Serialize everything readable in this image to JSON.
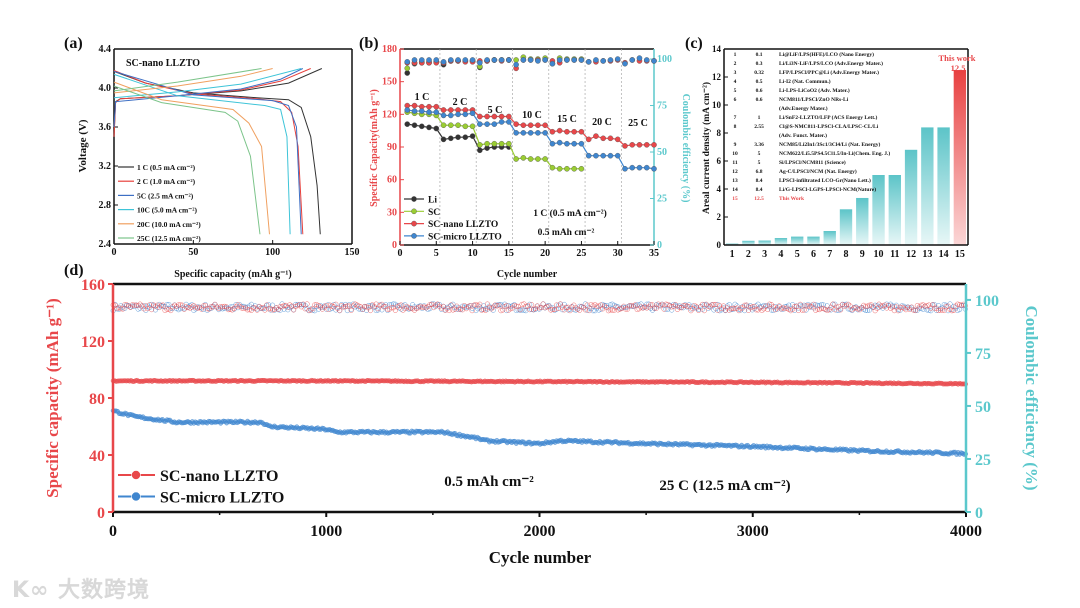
{
  "colors": {
    "red": "#e8474a",
    "blue": "#3f86cf",
    "cyan": "#5bc8cc",
    "black": "#333333",
    "green": "#9acd32"
  },
  "watermark": "大数跨境",
  "chart_data": [
    {
      "panel": "(a)",
      "type": "line",
      "title": "SC-nano LLZTO",
      "xlabel": "Specific capacity (mAh g⁻¹)",
      "ylabel": "Voltage (V)",
      "xlim": [
        0,
        150
      ],
      "ylim": [
        2.4,
        4.4
      ],
      "xticks": [
        "0",
        "50",
        "100",
        "150"
      ],
      "yticks": [
        "2.4",
        "2.8",
        "3.2",
        "3.6",
        "4.0",
        "4.4"
      ],
      "legend_position": "bottom-left",
      "series": [
        {
          "name": "1 C  (0.5  mA cm⁻²)",
          "color": "#333333",
          "discharge": [
            [
              0,
              4.17
            ],
            [
              20,
              4.05
            ],
            [
              50,
              3.95
            ],
            [
              90,
              3.9
            ],
            [
              110,
              3.88
            ],
            [
              118,
              3.8
            ],
            [
              124,
              3.5
            ],
            [
              128,
              3.0
            ],
            [
              130,
              2.5
            ]
          ],
          "charge": [
            [
              0,
              3.5
            ],
            [
              1,
              3.86
            ],
            [
              4,
              3.89
            ],
            [
              40,
              3.92
            ],
            [
              80,
              3.97
            ],
            [
              110,
              4.05
            ],
            [
              131,
              4.2
            ]
          ]
        },
        {
          "name": "2 C  (1.0  mA cm⁻²)",
          "color": "#e8413c",
          "discharge": [
            [
              0,
              4.18
            ],
            [
              20,
              4.05
            ],
            [
              50,
              3.94
            ],
            [
              90,
              3.89
            ],
            [
              105,
              3.86
            ],
            [
              112,
              3.75
            ],
            [
              116,
              3.4
            ],
            [
              119,
              2.5
            ]
          ],
          "charge": [
            [
              0,
              3.5
            ],
            [
              1,
              3.85
            ],
            [
              4,
              3.89
            ],
            [
              40,
              3.92
            ],
            [
              80,
              3.98
            ],
            [
              105,
              4.07
            ],
            [
              124,
              4.2
            ]
          ]
        },
        {
          "name": "5C   (2.5  mA cm⁻²)",
          "color": "#3d6fc4",
          "discharge": [
            [
              0,
              4.17
            ],
            [
              50,
              3.93
            ],
            [
              100,
              3.87
            ],
            [
              110,
              3.82
            ],
            [
              115,
              3.6
            ],
            [
              118,
              2.5
            ]
          ],
          "charge": [
            [
              0,
              3.6
            ],
            [
              1,
              3.86
            ],
            [
              40,
              3.92
            ],
            [
              80,
              3.99
            ],
            [
              105,
              4.09
            ],
            [
              119,
              4.2
            ]
          ]
        },
        {
          "name": "10C  (5.0  mA cm⁻²)",
          "color": "#3ec4d8",
          "discharge": [
            [
              0,
              4.14
            ],
            [
              40,
              3.92
            ],
            [
              95,
              3.82
            ],
            [
              105,
              3.78
            ],
            [
              109,
              3.5
            ],
            [
              111,
              2.5
            ]
          ],
          "charge": [
            [
              0,
              3.9
            ],
            [
              40,
              3.96
            ],
            [
              80,
              4.04
            ],
            [
              118,
              4.2
            ]
          ]
        },
        {
          "name": "20C  (10.0 mA cm⁻²)",
          "color": "#f0a060",
          "discharge": [
            [
              0,
              4.06
            ],
            [
              30,
              3.88
            ],
            [
              75,
              3.78
            ],
            [
              85,
              3.64
            ],
            [
              93,
              3.4
            ],
            [
              98,
              2.5
            ]
          ],
          "charge": [
            [
              0,
              3.95
            ],
            [
              40,
              4.02
            ],
            [
              80,
              4.12
            ],
            [
              100,
              4.2
            ]
          ]
        },
        {
          "name": "25C  (12.5 mA cm⁻²)",
          "color": "#7cc48a",
          "discharge": [
            [
              0,
              4.02
            ],
            [
              30,
              3.85
            ],
            [
              70,
              3.75
            ],
            [
              78,
              3.66
            ],
            [
              86,
              3.3
            ],
            [
              92,
              2.5
            ]
          ],
          "charge": [
            [
              0,
              3.97
            ],
            [
              40,
              4.06
            ],
            [
              93,
              4.2
            ]
          ]
        }
      ]
    },
    {
      "panel": "(b)",
      "type": "scatter",
      "xlabel": "Cycle number",
      "ylabel": "Specific Capacity(mAh g⁻¹)",
      "ylabel_right": "Coulombic efficiency (%)",
      "xlim": [
        0,
        35
      ],
      "ylim": [
        0,
        180
      ],
      "ylim_right": [
        0,
        105.4
      ],
      "xticks": [
        "0",
        "5",
        "10",
        "15",
        "20",
        "25",
        "30",
        "35"
      ],
      "yticks": [
        "0",
        "30",
        "60",
        "90",
        "120",
        "150",
        "180"
      ],
      "yticks_right": [
        "0",
        "25",
        "50",
        "75",
        "100"
      ],
      "rate_labels": [
        "1 C",
        "2 C",
        "5 C",
        "10 C",
        "15 C",
        "20 C",
        "25 C"
      ],
      "annotations": [
        "1 C (0.5 mA cm⁻²)",
        "0.5 mAh cm⁻²"
      ],
      "legend_position": "bottom-left",
      "series": [
        {
          "name": "Li",
          "color": "#333333",
          "capacity": [
            111,
            110,
            109,
            108,
            107,
            97,
            98,
            99,
            99,
            100,
            87,
            89,
            90,
            90,
            90
          ],
          "ce": [
            92.5,
            97.5,
            98,
            98,
            98.5,
            97,
            99,
            99,
            99,
            99,
            95.5,
            99,
            99.5,
            99.5,
            99.5
          ]
        },
        {
          "name": "SC",
          "color": "#9acd32",
          "capacity": [
            122,
            121,
            120,
            120,
            119,
            110,
            110,
            110,
            109,
            109,
            92,
            93,
            93,
            93,
            93,
            79,
            80,
            79,
            79,
            79,
            71,
            70,
            70,
            70,
            70
          ],
          "ce": [
            95,
            98,
            98.5,
            98.5,
            98.5,
            98,
            99,
            99,
            99,
            99,
            96,
            99,
            99.5,
            99.5,
            99.5,
            99.5,
            101,
            100,
            100,
            100.5,
            97.5,
            100.5,
            100,
            100,
            100
          ]
        },
        {
          "name": "SC-nano LLZTO",
          "color": "#e8474a",
          "capacity": [
            128,
            128,
            127,
            127,
            127,
            124,
            124,
            124,
            124,
            124,
            118,
            118,
            118,
            118,
            118,
            111,
            110,
            110,
            110,
            110,
            104,
            105,
            104,
            104,
            104,
            97,
            100,
            98,
            98,
            97,
            91,
            92,
            92,
            92,
            92
          ],
          "ce": [
            98,
            98,
            98,
            98,
            98,
            98,
            99,
            99,
            98.5,
            98.5,
            99,
            99,
            99.5,
            99,
            99.5,
            95,
            99.5,
            99.5,
            99.5,
            99.5,
            99,
            98,
            99.5,
            99.5,
            99.5,
            98.5,
            98.5,
            99,
            99,
            99.5,
            98,
            99.5,
            99,
            99,
            99
          ]
        },
        {
          "name": "SC-micro LLZTO",
          "color": "#3f86cf",
          "capacity": [
            124,
            123,
            123,
            122,
            122,
            119,
            119,
            120,
            120,
            121,
            111,
            111,
            111,
            113,
            113,
            103,
            103,
            103,
            103,
            103,
            93,
            94,
            93,
            93,
            93,
            82,
            82,
            82,
            82,
            82,
            70,
            71,
            71,
            71,
            70
          ],
          "ce": [
            98.5,
            99.5,
            99.5,
            99.5,
            99.5,
            98.5,
            99.5,
            99.5,
            99.5,
            99.5,
            98,
            99.5,
            99.5,
            99.5,
            99.5,
            97,
            99.5,
            99.5,
            99,
            99.5,
            97.5,
            99.5,
            99.5,
            99.5,
            99.5,
            98.5,
            99.5,
            99,
            99.5,
            100,
            97.5,
            99.5,
            100.5,
            99.5,
            99
          ]
        }
      ]
    },
    {
      "panel": "(c)",
      "type": "bar",
      "ylabel": "Areal current density (mA cm⁻²)",
      "ylim": [
        0,
        14
      ],
      "yticks": [
        "0",
        "2",
        "4",
        "6",
        "8",
        "10",
        "12",
        "14"
      ],
      "categories": [
        "1",
        "2",
        "3",
        "4",
        "5",
        "6",
        "7",
        "8",
        "9",
        "10",
        "11",
        "12",
        "13",
        "14",
        "15"
      ],
      "values": [
        0.1,
        0.3,
        0.32,
        0.5,
        0.6,
        0.6,
        1,
        2.55,
        3.36,
        5,
        5,
        6.8,
        8.4,
        8.4,
        12.5
      ],
      "highlight_label": "This work",
      "highlight_value_label": "12.5",
      "table": [
        {
          "no": "1",
          "value": "0.1",
          "text": "Li@LiF/LPS(HFE)/LCO (Nano Energy)"
        },
        {
          "no": "2",
          "value": "0.3",
          "text": "Li/Li3N-LiF/LPS/LCO (Adv.Energy Mater.)"
        },
        {
          "no": "3",
          "value": "0.32",
          "text": "LFP/LPSCl/PPC@Li (Adv.Energy Mater.)"
        },
        {
          "no": "4",
          "value": "0.5",
          "text": "Li-I2 (Nat. Commun.)"
        },
        {
          "no": "5",
          "value": "0.6",
          "text": "Li-LPS-LiCoO2 (Adv. Mater.)"
        },
        {
          "no": "6",
          "value": "0.6",
          "text": "NCM811/LPSCl/ZnO NRs-Li",
          "text2": "(Adv.Energy Mater.)"
        },
        {
          "no": "7",
          "value": "1",
          "text": "Li/SnF2-LLZTO/LFP (ACS Energy Lett.)"
        },
        {
          "no": "8",
          "value": "2.55",
          "text": "Cl@S-NMC811-LPSCl-CLA/LPSC-CL/Li",
          "text2": "(Adv. Funct. Mater.)"
        },
        {
          "no": "9",
          "value": "3.36",
          "text": "NCM85/Li2In1/3Sc1/3Cl4/Li (Nat. Energy)"
        },
        {
          "no": "10",
          "value": "5",
          "text": "NCM622/Li5.5PS4.5Cl1.5/In-Li(Chem. Eng. J.)"
        },
        {
          "no": "11",
          "value": "5",
          "text": "Si/LPSCl/NCM811 (Science)"
        },
        {
          "no": "12",
          "value": "6.8",
          "text": "Ag-C/LPSCl/NCM (Nat. Energy)"
        },
        {
          "no": "13",
          "value": "8.4",
          "text": "LPSCl-infiltrated LCO-Gr(Nano Lett.)"
        },
        {
          "no": "14",
          "value": "8.4",
          "text": "Li/G-LPSCl-LGPS-LPSCl-NCM(Nature)"
        },
        {
          "no": "15",
          "value": "12.5",
          "text": "This Work"
        }
      ]
    },
    {
      "panel": "(d)",
      "type": "scatter",
      "xlabel": "Cycle number",
      "ylabel": "Specific capacity (mAh g⁻¹)",
      "ylabel_right": "Coulombic efficiency (%)",
      "xlim": [
        0,
        4000
      ],
      "ylim": [
        0,
        160
      ],
      "ylim_right": [
        0,
        107.5
      ],
      "xticks": [
        "0",
        "1000",
        "2000",
        "3000",
        "4000"
      ],
      "yticks": [
        "0",
        "40",
        "80",
        "120",
        "160"
      ],
      "yticks_right": [
        "0",
        "25",
        "50",
        "75",
        "100"
      ],
      "annotations": [
        "0.5 mAh cm⁻²",
        "25 C (12.5 mA cm⁻²)"
      ],
      "legend_position": "bottom-left",
      "series": [
        {
          "name": "SC-nano LLZTO",
          "color": "#e8474a",
          "capacity_trend": [
            [
              0,
              92
            ],
            [
              1000,
              92
            ],
            [
              2000,
              91.5
            ],
            [
              3000,
              91
            ],
            [
              4000,
              90
            ]
          ],
          "ce_mean": 96.5
        },
        {
          "name": "SC-micro LLZTO",
          "color": "#3f86cf",
          "capacity_trend": [
            [
              0,
              71
            ],
            [
              100,
              67
            ],
            [
              300,
              63
            ],
            [
              700,
              63
            ],
            [
              730,
              60
            ],
            [
              1000,
              58
            ],
            [
              1050,
              56
            ],
            [
              1550,
              56
            ],
            [
              1700,
              52
            ],
            [
              1750,
              50
            ],
            [
              2000,
              48
            ],
            [
              2100,
              50
            ],
            [
              2500,
              48
            ],
            [
              3000,
              46
            ],
            [
              3500,
              43
            ],
            [
              4000,
              41
            ]
          ],
          "ce_mean": 96.5
        }
      ]
    }
  ]
}
